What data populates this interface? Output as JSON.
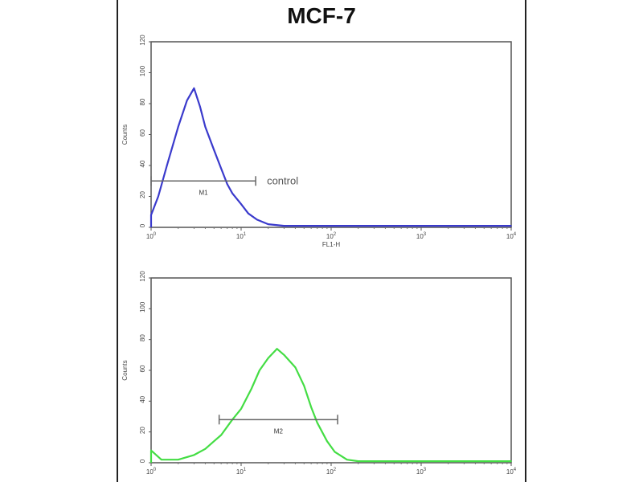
{
  "figure_title": "MCF-7",
  "chart_data": [
    {
      "type": "line",
      "title": "",
      "xlabel": "FL1-H",
      "ylabel": "Counts",
      "xscale": "log",
      "xlim": [
        1,
        10000
      ],
      "ylim": [
        0,
        120
      ],
      "xticks": [
        "10^0",
        "10^1",
        "10^2",
        "10^3",
        "10^4"
      ],
      "yticks": [
        0,
        20,
        40,
        60,
        80,
        100,
        120
      ],
      "color": "#3a3acc",
      "annotation": "control",
      "gate": {
        "label": "M1",
        "from": 1.0,
        "to": 14.5,
        "y": 30
      },
      "series": [
        {
          "x": [
            1.0,
            1.2,
            1.5,
            2.0,
            2.5,
            3.0,
            3.5,
            4.0,
            5.0,
            6.0,
            7.0,
            8.0,
            10,
            12,
            15,
            20,
            30,
            100,
            1000,
            10000
          ],
          "y": [
            8,
            20,
            40,
            65,
            82,
            90,
            78,
            65,
            50,
            38,
            28,
            22,
            15,
            9,
            5,
            2,
            1,
            1,
            1,
            1
          ]
        }
      ]
    },
    {
      "type": "line",
      "title": "",
      "xlabel": "",
      "ylabel": "Counts",
      "xscale": "log",
      "xlim": [
        1,
        10000
      ],
      "ylim": [
        0,
        120
      ],
      "xticks": [
        "10^0",
        "10^1",
        "10^2",
        "10^3",
        "10^4"
      ],
      "yticks": [
        0,
        20,
        40,
        60,
        80,
        100,
        120
      ],
      "color": "#44dd44",
      "gate": {
        "label": "M2",
        "from": 5.7,
        "to": 118,
        "y": 28
      },
      "series": [
        {
          "x": [
            1.0,
            1.3,
            2,
            3,
            4,
            5,
            6,
            8,
            10,
            13,
            16,
            20,
            25,
            30,
            40,
            50,
            60,
            70,
            90,
            110,
            150,
            200,
            1000,
            10000
          ],
          "y": [
            8,
            2,
            2,
            5,
            9,
            14,
            18,
            28,
            35,
            48,
            60,
            68,
            74,
            70,
            62,
            50,
            36,
            26,
            14,
            7,
            2,
            1,
            1,
            1
          ]
        }
      ]
    }
  ]
}
